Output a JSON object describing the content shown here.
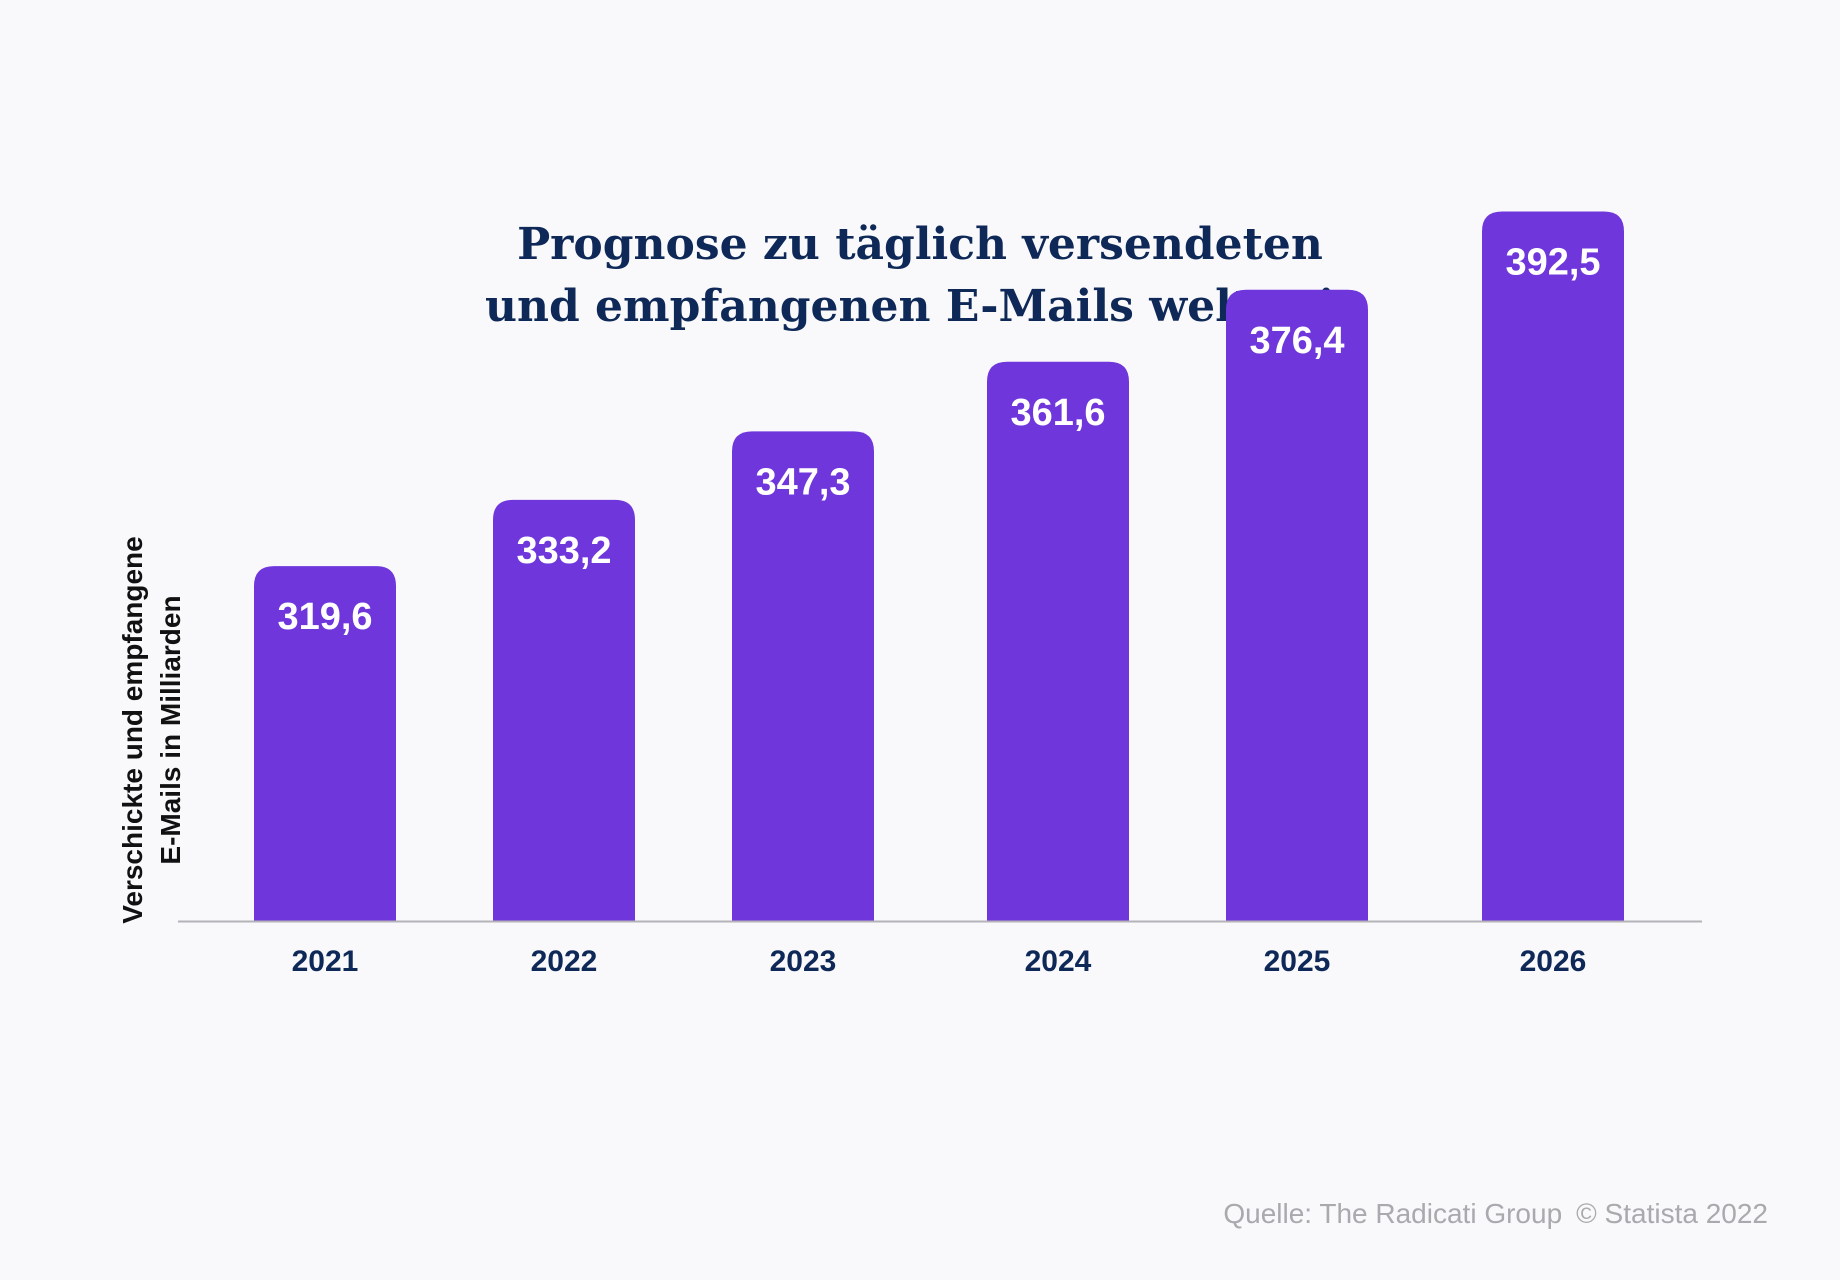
{
  "chart_data": {
    "type": "bar",
    "title": [
      "Prognose zu täglich versendeten",
      "und empfangenen E-Mails weltweit"
    ],
    "ylabel": [
      "Verschickte und empfangene",
      "E-Mails in Milliarden"
    ],
    "xlabel": "",
    "categories": [
      "2021",
      "2022",
      "2023",
      "2024",
      "2025",
      "2026"
    ],
    "values": [
      319.6,
      333.2,
      347.3,
      361.6,
      376.4,
      392.5
    ],
    "value_labels": [
      "319,6",
      "333,2",
      "347,3",
      "361,6",
      "376,4",
      "392,5"
    ],
    "grid": false,
    "legend": "none",
    "colors": {
      "bar": "#6f36dc",
      "value_label": "#ffffff",
      "title": "#0e2857",
      "axis": "#b3b3b8",
      "tick_label": "#0e2857",
      "source": "#a9a9ae"
    }
  },
  "footer": {
    "source": "Quelle: The Radicati Group",
    "copyright": "© Statista 2022"
  }
}
